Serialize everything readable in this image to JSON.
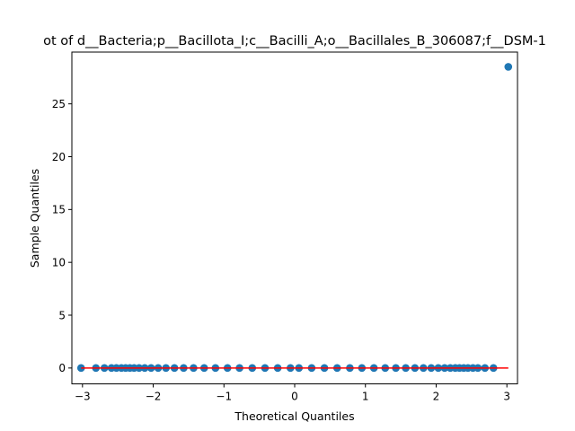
{
  "chart_data": {
    "type": "scatter",
    "title": "ot of d__Bacteria;p__Bacillota_I;c__Bacilli_A;o__Bacillales_B_306087;f__DSM-1",
    "xlabel": "Theoretical Quantiles",
    "ylabel": "Sample Quantiles",
    "xlim": [
      -3.15,
      3.15
    ],
    "ylim": [
      -1.5,
      29.9
    ],
    "x_ticks": [
      -3,
      -2,
      -1,
      0,
      1,
      2,
      3
    ],
    "y_ticks": [
      0,
      5,
      10,
      15,
      20,
      25
    ],
    "grid": false,
    "reference_line": {
      "x": [
        -3.02,
        3.02
      ],
      "y": [
        0,
        0
      ],
      "color": "#ff0000"
    },
    "series": [
      {
        "color": "#1f77b4",
        "points": [
          [
            -3.02,
            0
          ],
          [
            -2.81,
            0
          ],
          [
            -2.69,
            0
          ],
          [
            -2.59,
            0
          ],
          [
            -2.52,
            0
          ],
          [
            -2.45,
            0
          ],
          [
            -2.39,
            0
          ],
          [
            -2.33,
            0
          ],
          [
            -2.27,
            0
          ],
          [
            -2.2,
            0
          ],
          [
            -2.12,
            0
          ],
          [
            -2.03,
            0
          ],
          [
            -1.93,
            0
          ],
          [
            -1.82,
            0
          ],
          [
            -1.7,
            0
          ],
          [
            -1.57,
            0
          ],
          [
            -1.43,
            0
          ],
          [
            -1.28,
            0
          ],
          [
            -1.12,
            0
          ],
          [
            -0.95,
            0
          ],
          [
            -0.78,
            0
          ],
          [
            -0.6,
            0
          ],
          [
            -0.42,
            0
          ],
          [
            -0.24,
            0
          ],
          [
            -0.06,
            0
          ],
          [
            0.06,
            0
          ],
          [
            0.24,
            0
          ],
          [
            0.42,
            0
          ],
          [
            0.6,
            0
          ],
          [
            0.78,
            0
          ],
          [
            0.95,
            0
          ],
          [
            1.12,
            0
          ],
          [
            1.28,
            0
          ],
          [
            1.43,
            0
          ],
          [
            1.57,
            0
          ],
          [
            1.7,
            0
          ],
          [
            1.82,
            0
          ],
          [
            1.93,
            0
          ],
          [
            2.03,
            0
          ],
          [
            2.12,
            0
          ],
          [
            2.2,
            0
          ],
          [
            2.27,
            0
          ],
          [
            2.33,
            0
          ],
          [
            2.39,
            0
          ],
          [
            2.45,
            0
          ],
          [
            2.52,
            0
          ],
          [
            2.59,
            0
          ],
          [
            2.69,
            0
          ],
          [
            2.81,
            0
          ],
          [
            3.02,
            28.5
          ]
        ]
      }
    ]
  }
}
